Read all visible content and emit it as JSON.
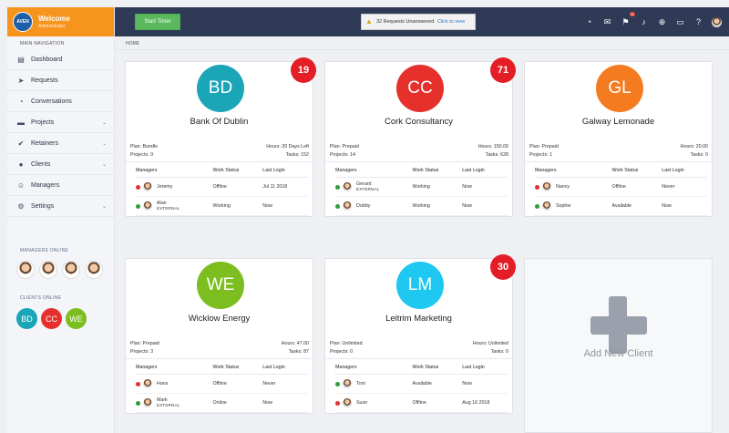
{
  "brand": {
    "logo_text": "AVEN",
    "title": "Welcome",
    "subtitle": "Administrator"
  },
  "sidebar": {
    "nav_heading": "MAIN NAVIGATION",
    "items": [
      {
        "label": "Dashboard",
        "icon": "dashboard-icon",
        "chevron": false
      },
      {
        "label": "Requests",
        "icon": "paper-plane-icon",
        "chevron": false
      },
      {
        "label": "Conversations",
        "icon": "chat-icon",
        "chevron": false
      },
      {
        "label": "Projects",
        "icon": "folder-icon",
        "chevron": true
      },
      {
        "label": "Retainers",
        "icon": "check-circle-icon",
        "chevron": true
      },
      {
        "label": "Clients",
        "icon": "users-icon",
        "chevron": true
      },
      {
        "label": "Managers",
        "icon": "smile-icon",
        "chevron": false
      },
      {
        "label": "Settings",
        "icon": "gear-icon",
        "chevron": true
      }
    ],
    "managers_online_label": "MANAGERS ONLINE",
    "clients_online_label": "CLIENTS ONLINE",
    "clients_online": [
      {
        "initials": "BD",
        "color": "#1aa6b7"
      },
      {
        "initials": "CC",
        "color": "#e5302c"
      },
      {
        "initials": "WE",
        "color": "#7cbd1f"
      }
    ]
  },
  "topbar": {
    "start_timer": "Start Timer",
    "alert_text": "32 Requests Unanswered.",
    "alert_link": "Click to view",
    "flag_badge": "32"
  },
  "breadcrumb": "HOME",
  "table_headers": {
    "managers": "Managers",
    "work_status": "Work Status",
    "last_login": "Last Login"
  },
  "clients": [
    {
      "initials": "BD",
      "color": "#1aa6b7",
      "badge": "19",
      "name": "Bank Of Dublin",
      "plan": "Plan: Bundle",
      "hours": "Hours: 20 Days Left",
      "projects": "Projects: 9",
      "tasks": "Tasks: 152",
      "managers": [
        {
          "name": "Jeremy",
          "external": "",
          "status_color": "#e5302c",
          "work_status": "Offline",
          "last_login": "Jul 11 2018"
        },
        {
          "name": "Alan",
          "external": "EXTERNAL",
          "status_color": "#2e9b3c",
          "work_status": "Working",
          "last_login": "Now"
        }
      ]
    },
    {
      "initials": "CC",
      "color": "#e5302c",
      "badge": "71",
      "name": "Cork Consultancy",
      "plan": "Plan: Prepaid",
      "hours": "Hours: 150.00",
      "projects": "Projects: 14",
      "tasks": "Tasks: 628",
      "managers": [
        {
          "name": "Gerard",
          "external": "EXTERNAL",
          "status_color": "#2e9b3c",
          "work_status": "Working",
          "last_login": "Now"
        },
        {
          "name": "Dobby",
          "external": "",
          "status_color": "#2e9b3c",
          "work_status": "Working",
          "last_login": "Now"
        }
      ]
    },
    {
      "initials": "GL",
      "color": "#f47b20",
      "badge": "",
      "name": "Galway Lemonade",
      "plan": "Plan: Prepaid",
      "hours": "Hours: 20.00",
      "projects": "Projects: 1",
      "tasks": "Tasks: 0",
      "managers": [
        {
          "name": "Nancy",
          "external": "",
          "status_color": "#e5302c",
          "work_status": "Offline",
          "last_login": "Never"
        },
        {
          "name": "Sophie",
          "external": "",
          "status_color": "#2e9b3c",
          "work_status": "Available",
          "last_login": "Now"
        }
      ]
    },
    {
      "initials": "WE",
      "color": "#7cbd1f",
      "badge": "",
      "name": "Wicklow Energy",
      "plan": "Plan: Prepaid",
      "hours": "Hours: 47.00",
      "projects": "Projects: 3",
      "tasks": "Tasks: 87",
      "managers": [
        {
          "name": "Hans",
          "external": "",
          "status_color": "#e5302c",
          "work_status": "Offline",
          "last_login": "Never"
        },
        {
          "name": "Mark",
          "external": "EXTERNAL",
          "status_color": "#2e9b3c",
          "work_status": "Online",
          "last_login": "Now"
        }
      ]
    },
    {
      "initials": "LM",
      "color": "#1ec8f0",
      "badge": "30",
      "name": "Leitrim Marketing",
      "plan": "Plan: Unlimited",
      "hours": "Hours: Unlimited",
      "projects": "Projects: 0",
      "tasks": "Tasks: 0",
      "managers": [
        {
          "name": "Toni",
          "external": "",
          "status_color": "#2e9b3c",
          "work_status": "Available",
          "last_login": "Now"
        },
        {
          "name": "Suze",
          "external": "",
          "status_color": "#e5302c",
          "work_status": "Offline",
          "last_login": "Aug 16 2018"
        }
      ]
    }
  ],
  "add_client_label": "Add New Client"
}
